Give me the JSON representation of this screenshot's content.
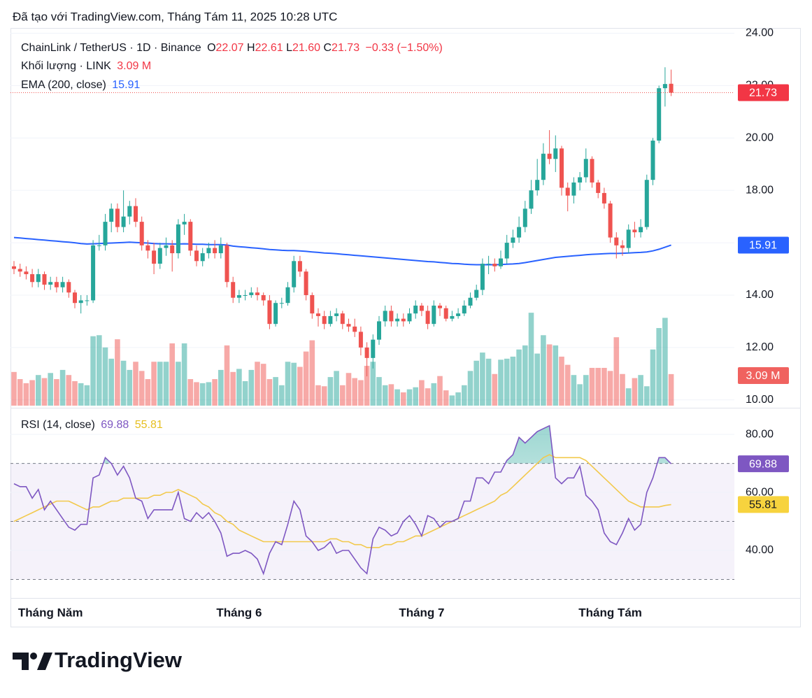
{
  "header": "Đã tạo với TradingView.com, Tháng Tám 11, 2025 10:28 UTC",
  "brand": "TradingView",
  "chart_data": {
    "type": "candlestick",
    "title": "ChainLink / TetherUS · 1D · Binance",
    "legend": {
      "open_label": "O",
      "open": "22.07",
      "high_label": "H",
      "high": "22.61",
      "low_label": "L",
      "low": "21.60",
      "close_label": "C",
      "close": "21.73",
      "change": "−0.33 (−1.50%)"
    },
    "categories": [
      null,
      null,
      null,
      null,
      null,
      null,
      "Tháng Năm",
      null,
      null,
      null,
      null,
      null,
      null,
      null,
      null,
      null,
      null,
      null,
      null,
      null,
      null,
      null,
      null,
      null,
      null,
      null,
      null,
      null,
      null,
      null,
      null,
      null,
      null,
      null,
      null,
      null,
      null,
      "Tháng 6",
      null,
      null,
      null,
      null,
      null,
      null,
      null,
      null,
      null,
      null,
      null,
      null,
      null,
      null,
      null,
      null,
      null,
      null,
      null,
      null,
      null,
      null,
      null,
      null,
      null,
      null,
      null,
      null,
      null,
      "Tháng 7",
      null,
      null,
      null,
      null,
      null,
      null,
      null,
      null,
      null,
      null,
      null,
      null,
      null,
      null,
      null,
      null,
      null,
      null,
      null,
      null,
      null,
      null,
      null,
      null,
      null,
      null,
      null,
      null,
      null,
      null,
      "Tháng Tám",
      null,
      null,
      null,
      null,
      null,
      null,
      null,
      null,
      null,
      null
    ],
    "ohlc": [
      [
        15.1,
        15.3,
        14.8,
        15.0
      ],
      [
        15.0,
        15.2,
        14.7,
        14.9
      ],
      [
        14.9,
        15.1,
        14.6,
        14.8
      ],
      [
        14.8,
        15.0,
        14.3,
        14.5
      ],
      [
        14.5,
        15.0,
        14.3,
        14.8
      ],
      [
        14.8,
        14.9,
        14.2,
        14.4
      ],
      [
        14.4,
        14.7,
        14.2,
        14.5
      ],
      [
        14.5,
        14.7,
        14.1,
        14.3
      ],
      [
        14.3,
        14.7,
        14.1,
        14.5
      ],
      [
        14.5,
        14.6,
        13.9,
        14.1
      ],
      [
        14.1,
        14.2,
        13.5,
        13.7
      ],
      [
        13.7,
        14.0,
        13.3,
        13.8
      ],
      [
        13.8,
        14.0,
        13.6,
        13.8
      ],
      [
        13.8,
        16.1,
        13.7,
        15.9
      ],
      [
        15.9,
        16.3,
        15.7,
        15.9
      ],
      [
        15.9,
        17.1,
        15.7,
        16.8
      ],
      [
        16.8,
        17.5,
        16.4,
        17.3
      ],
      [
        17.3,
        17.5,
        16.4,
        16.6
      ],
      [
        16.6,
        18.0,
        16.4,
        17.0
      ],
      [
        17.0,
        17.6,
        16.7,
        17.4
      ],
      [
        17.4,
        17.7,
        16.6,
        16.8
      ],
      [
        16.8,
        17.0,
        15.7,
        15.9
      ],
      [
        15.9,
        16.1,
        15.4,
        15.7
      ],
      [
        15.7,
        16.0,
        14.8,
        15.2
      ],
      [
        15.2,
        16.0,
        15.0,
        15.8
      ],
      [
        15.8,
        16.2,
        15.5,
        15.9
      ],
      [
        15.9,
        16.1,
        14.9,
        15.6
      ],
      [
        15.6,
        16.9,
        15.4,
        16.7
      ],
      [
        16.7,
        17.1,
        16.3,
        16.8
      ],
      [
        16.8,
        16.9,
        15.5,
        15.7
      ],
      [
        15.7,
        15.9,
        15.1,
        15.3
      ],
      [
        15.3,
        15.8,
        15.1,
        15.6
      ],
      [
        15.6,
        16.0,
        15.4,
        15.8
      ],
      [
        15.8,
        16.1,
        15.4,
        15.6
      ],
      [
        15.6,
        16.2,
        15.4,
        15.9
      ],
      [
        15.9,
        16.0,
        14.3,
        14.5
      ],
      [
        14.5,
        14.7,
        13.7,
        13.9
      ],
      [
        13.9,
        14.2,
        13.7,
        14.0
      ],
      [
        14.0,
        14.2,
        13.8,
        14.0
      ],
      [
        14.0,
        14.3,
        13.9,
        14.1
      ],
      [
        14.1,
        14.3,
        13.8,
        14.0
      ],
      [
        14.0,
        14.1,
        13.6,
        13.8
      ],
      [
        13.8,
        14.0,
        12.7,
        12.9
      ],
      [
        12.9,
        13.8,
        12.8,
        13.7
      ],
      [
        13.7,
        13.9,
        13.5,
        13.7
      ],
      [
        13.7,
        14.5,
        13.6,
        14.3
      ],
      [
        14.3,
        15.5,
        14.1,
        15.3
      ],
      [
        15.3,
        15.5,
        14.7,
        14.9
      ],
      [
        14.9,
        15.0,
        13.8,
        14.0
      ],
      [
        14.0,
        14.1,
        13.1,
        13.3
      ],
      [
        13.3,
        13.5,
        12.8,
        13.2
      ],
      [
        13.2,
        13.4,
        12.7,
        12.9
      ],
      [
        12.9,
        13.4,
        12.8,
        13.2
      ],
      [
        13.2,
        13.5,
        13.0,
        13.3
      ],
      [
        13.3,
        13.4,
        12.7,
        12.9
      ],
      [
        12.9,
        13.1,
        12.6,
        12.8
      ],
      [
        12.8,
        13.1,
        12.4,
        12.6
      ],
      [
        12.6,
        12.8,
        11.7,
        12.0
      ],
      [
        12.0,
        12.2,
        10.9,
        11.6
      ],
      [
        11.6,
        12.5,
        11.2,
        12.3
      ],
      [
        12.3,
        13.2,
        12.1,
        13.0
      ],
      [
        13.0,
        13.6,
        12.8,
        13.4
      ],
      [
        13.4,
        13.6,
        12.8,
        13.0
      ],
      [
        13.0,
        13.3,
        12.8,
        13.1
      ],
      [
        13.1,
        13.3,
        12.8,
        13.0
      ],
      [
        13.0,
        13.5,
        12.9,
        13.3
      ],
      [
        13.3,
        13.8,
        13.1,
        13.6
      ],
      [
        13.6,
        13.7,
        13.2,
        13.4
      ],
      [
        13.4,
        13.6,
        12.7,
        12.9
      ],
      [
        12.9,
        13.8,
        12.8,
        13.6
      ],
      [
        13.6,
        13.7,
        13.2,
        13.5
      ],
      [
        13.5,
        13.6,
        13.0,
        13.1
      ],
      [
        13.1,
        13.4,
        13.0,
        13.2
      ],
      [
        13.2,
        13.5,
        13.1,
        13.3
      ],
      [
        13.3,
        13.8,
        13.2,
        13.6
      ],
      [
        13.6,
        14.1,
        13.5,
        13.9
      ],
      [
        13.9,
        14.4,
        13.8,
        14.2
      ],
      [
        14.2,
        15.4,
        14.0,
        15.2
      ],
      [
        15.2,
        15.5,
        14.8,
        15.2
      ],
      [
        15.2,
        15.4,
        14.9,
        15.1
      ],
      [
        15.1,
        15.7,
        15.0,
        15.4
      ],
      [
        15.4,
        16.3,
        15.2,
        16.0
      ],
      [
        16.0,
        16.5,
        15.8,
        16.2
      ],
      [
        16.2,
        17.0,
        16.0,
        16.6
      ],
      [
        16.6,
        17.6,
        16.4,
        17.3
      ],
      [
        17.3,
        18.4,
        17.1,
        18.0
      ],
      [
        18.0,
        19.2,
        17.8,
        18.4
      ],
      [
        18.4,
        19.8,
        18.2,
        19.4
      ],
      [
        19.4,
        20.3,
        19.0,
        19.2
      ],
      [
        19.2,
        20.1,
        18.7,
        19.6
      ],
      [
        19.6,
        19.7,
        17.8,
        18.1
      ],
      [
        18.1,
        18.3,
        17.2,
        17.8
      ],
      [
        17.8,
        18.5,
        17.5,
        18.3
      ],
      [
        18.3,
        18.7,
        18.0,
        18.5
      ],
      [
        18.5,
        19.6,
        18.3,
        19.2
      ],
      [
        19.2,
        19.3,
        18.1,
        18.3
      ],
      [
        18.3,
        18.4,
        17.7,
        17.9
      ],
      [
        17.9,
        18.1,
        17.3,
        17.5
      ],
      [
        17.5,
        17.6,
        16.0,
        16.2
      ],
      [
        16.2,
        16.4,
        15.4,
        15.9
      ],
      [
        15.9,
        16.1,
        15.5,
        15.8
      ],
      [
        15.8,
        16.7,
        15.6,
        16.5
      ],
      [
        16.5,
        16.8,
        16.2,
        16.4
      ],
      [
        16.4,
        16.9,
        16.2,
        16.6
      ],
      [
        16.6,
        18.6,
        16.5,
        18.4
      ],
      [
        18.4,
        20.0,
        18.2,
        19.9
      ],
      [
        19.9,
        22.0,
        19.8,
        21.9
      ],
      [
        21.9,
        22.7,
        21.2,
        22.06
      ],
      [
        22.07,
        22.61,
        21.6,
        21.73
      ]
    ],
    "up_color": "#26a69a",
    "down_color": "#ef5350",
    "ylim": [
      9.7,
      24.2
    ],
    "yticks": [
      {
        "value": 10,
        "label": "10.00"
      },
      {
        "value": 12,
        "label": "12.00"
      },
      {
        "value": 14,
        "label": "14.00"
      },
      {
        "value": 16,
        "label": "16.00"
      },
      {
        "value": 18,
        "label": "18.00"
      },
      {
        "value": 20,
        "label": "20.00"
      },
      {
        "value": 22,
        "label": "22.00"
      },
      {
        "value": 24,
        "label": "24.00"
      }
    ],
    "grid": true,
    "volume": {
      "name": "Khối lượng · LINK",
      "value_label": "3.09 M",
      "values": [
        3.3,
        2.6,
        2.2,
        2.5,
        3.0,
        2.7,
        3.2,
        2.6,
        3.5,
        3.0,
        2.4,
        2.2,
        2.0,
        6.8,
        6.9,
        5.7,
        4.6,
        6.5,
        4.4,
        3.5,
        4.3,
        3.4,
        2.6,
        4.3,
        4.3,
        4.3,
        6.1,
        4.3,
        6.1,
        2.6,
        2.3,
        2.2,
        2.3,
        2.6,
        3.5,
        5.9,
        3.3,
        3.6,
        2.4,
        3.5,
        4.3,
        4.1,
        2.6,
        2.8,
        2.0,
        4.3,
        4.2,
        3.8,
        5.3,
        6.4,
        2.0,
        1.9,
        2.8,
        3.4,
        2.0,
        3.2,
        2.7,
        2.5,
        3.9,
        4.3,
        2.8,
        2.0,
        2.1,
        1.6,
        1.3,
        1.6,
        1.8,
        2.5,
        1.7,
        2.2,
        2.9,
        1.5,
        1.0,
        1.3,
        2.0,
        3.4,
        4.4,
        5.2,
        4.6,
        3.1,
        4.5,
        4.6,
        4.8,
        5.5,
        5.9,
        9.1,
        5.1,
        6.9,
        6.0,
        5.9,
        4.8,
        4.0,
        3.0,
        2.1,
        3.0,
        3.7,
        3.7,
        3.7,
        3.4,
        6.7,
        3.1,
        1.7,
        2.7,
        3.0,
        1.9,
        5.5,
        7.6,
        8.6,
        3.09
      ]
    },
    "ema": {
      "name": "EMA (200, close)",
      "color": "#2962ff",
      "values": [
        16.2,
        16.18,
        16.16,
        16.14,
        16.12,
        16.1,
        16.08,
        16.06,
        16.04,
        16.02,
        16.0,
        15.97,
        15.95,
        15.96,
        15.97,
        15.98,
        15.99,
        16.0,
        16.01,
        16.02,
        16.01,
        16.0,
        15.99,
        15.97,
        15.96,
        15.96,
        15.95,
        15.95,
        15.96,
        15.95,
        15.94,
        15.94,
        15.93,
        15.93,
        15.93,
        15.91,
        15.87,
        15.85,
        15.83,
        15.81,
        15.79,
        15.77,
        15.74,
        15.73,
        15.71,
        15.7,
        15.7,
        15.69,
        15.67,
        15.65,
        15.63,
        15.61,
        15.6,
        15.58,
        15.56,
        15.54,
        15.52,
        15.5,
        15.48,
        15.46,
        15.44,
        15.42,
        15.4,
        15.38,
        15.36,
        15.34,
        15.32,
        15.3,
        15.28,
        15.27,
        15.25,
        15.23,
        15.21,
        15.2,
        15.18,
        15.17,
        15.16,
        15.16,
        15.16,
        15.16,
        15.17,
        15.18,
        15.19,
        15.21,
        15.24,
        15.28,
        15.32,
        15.36,
        15.4,
        15.44,
        15.46,
        15.48,
        15.5,
        15.52,
        15.54,
        15.56,
        15.57,
        15.58,
        15.59,
        15.59,
        15.6,
        15.61,
        15.62,
        15.63,
        15.65,
        15.69,
        15.75,
        15.83,
        15.91
      ]
    },
    "rsi": {
      "name": "RSI (14, close)",
      "color": "#7e57c2",
      "ma_color": "#f2c94c",
      "values": [
        63,
        62,
        62,
        58,
        61,
        54,
        57,
        54,
        51,
        48,
        47,
        49,
        49,
        65,
        66,
        72,
        70,
        66,
        69,
        65,
        58,
        57,
        51,
        54,
        54,
        54,
        54,
        60,
        51,
        50,
        53,
        51,
        53,
        50,
        46,
        38,
        39,
        39,
        40,
        39,
        37,
        32,
        39,
        43,
        42,
        49,
        57,
        54,
        45,
        43,
        40,
        41,
        43,
        39,
        40,
        40,
        37,
        34,
        32,
        44,
        48,
        47,
        45,
        46,
        50,
        52,
        49,
        45,
        52,
        51,
        48,
        50,
        50,
        51,
        57,
        57,
        65,
        65,
        63,
        67,
        67,
        71,
        73,
        79,
        77,
        79,
        81,
        82,
        83,
        65,
        63,
        65,
        65,
        69,
        59,
        57,
        54,
        46,
        43,
        42,
        46,
        51,
        47,
        49,
        60,
        65,
        72,
        72,
        69.88
      ],
      "ma_values": [
        50,
        51,
        52,
        53,
        54,
        55,
        56,
        57,
        57,
        57,
        56,
        55,
        54,
        55,
        55,
        56,
        57,
        57,
        58,
        58,
        58,
        58,
        58,
        59,
        59,
        60,
        60,
        61,
        60,
        59,
        58,
        56,
        55,
        53,
        52,
        50,
        49,
        47,
        46,
        45,
        44,
        43,
        43,
        43,
        43,
        43,
        43,
        43,
        43,
        43,
        43,
        43,
        44,
        44,
        43,
        43,
        42,
        42,
        41,
        41,
        41,
        42,
        42,
        43,
        43,
        44,
        45,
        45,
        46,
        47,
        48,
        49,
        50,
        51,
        52,
        53,
        54,
        55,
        56,
        57,
        59,
        60,
        62,
        64,
        66,
        68,
        70,
        72,
        73,
        72,
        72,
        72,
        72,
        72,
        71,
        69,
        67,
        65,
        63,
        61,
        59,
        57,
        56,
        55,
        55,
        55,
        55,
        55.5,
        55.81
      ],
      "levels": [
        30,
        50,
        70
      ],
      "ylim": [
        23.6,
        87.5
      ],
      "yticks": [
        {
          "value": 40,
          "label": "40.00"
        },
        {
          "value": 60,
          "label": "60.00"
        },
        {
          "value": 80,
          "label": "80.00"
        }
      ]
    }
  }
}
